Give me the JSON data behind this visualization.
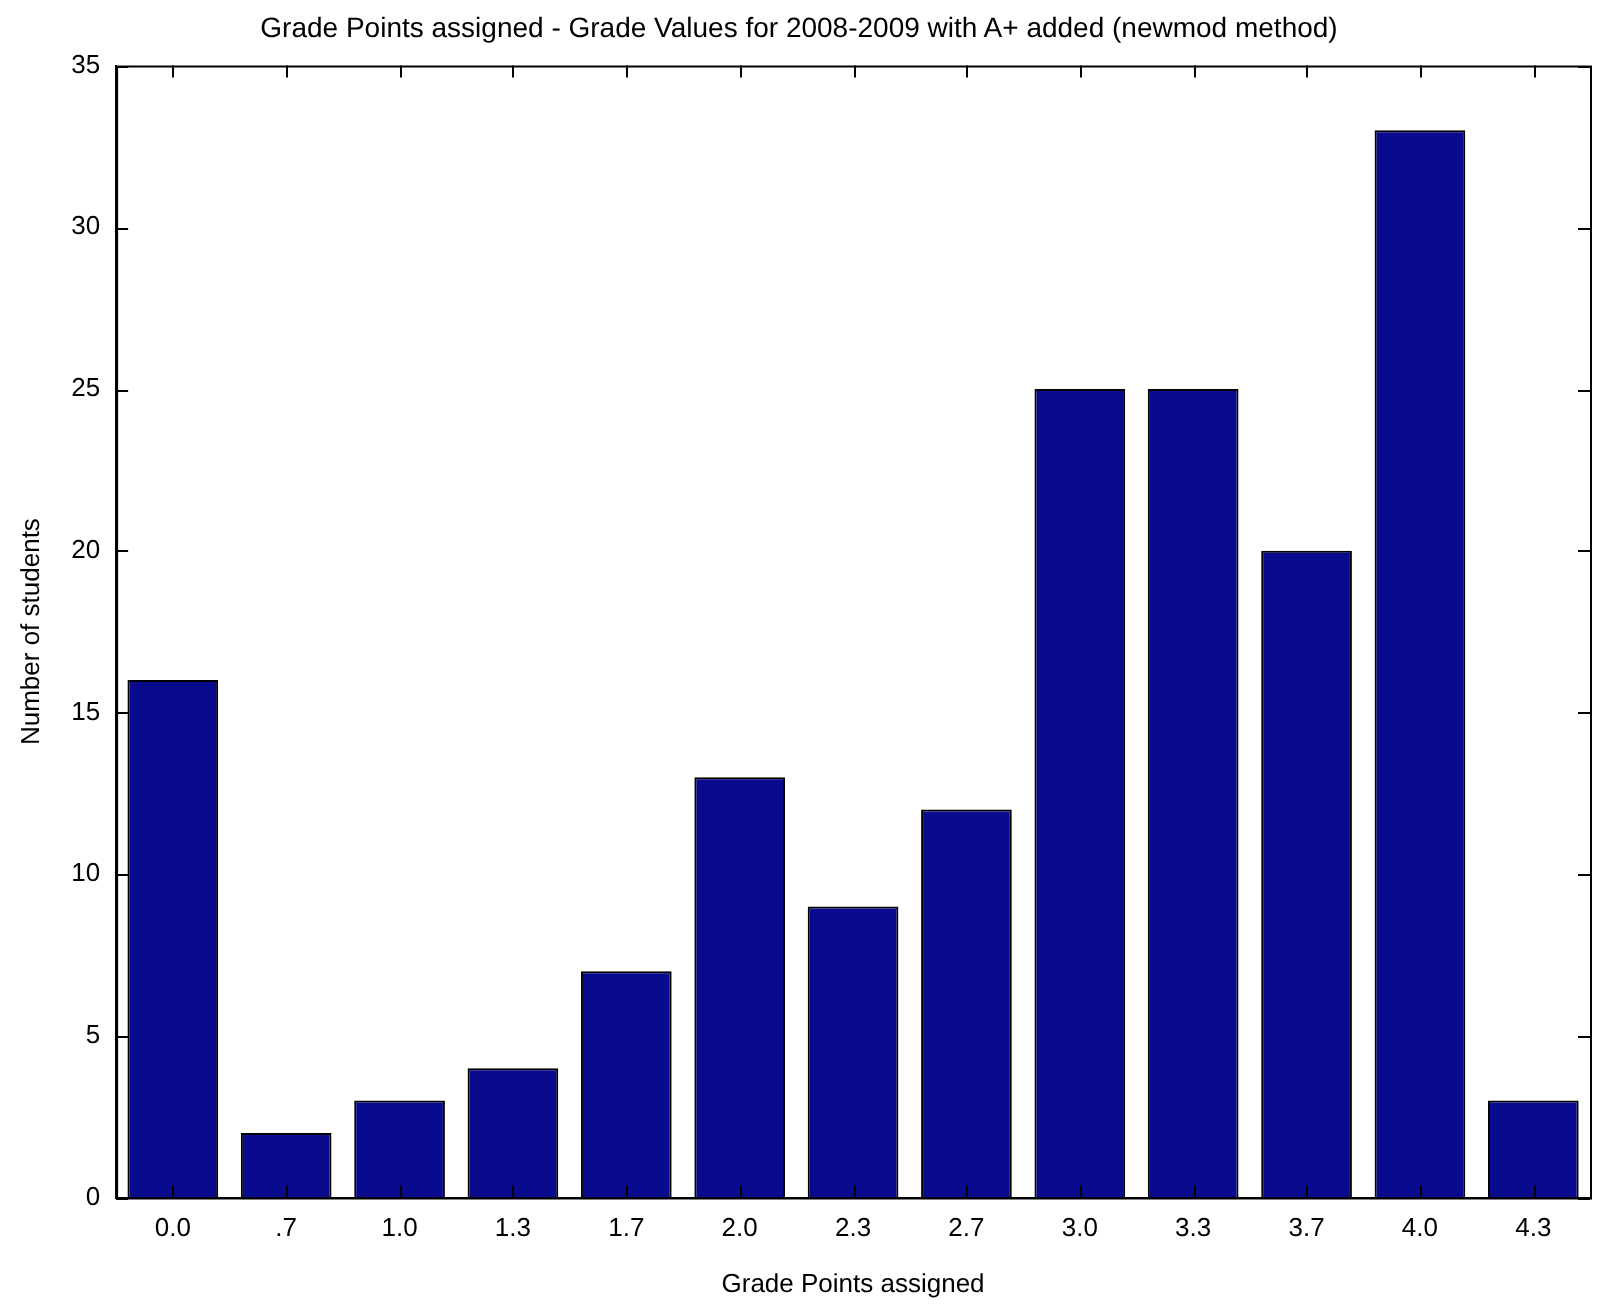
{
  "chart_data": {
    "type": "bar",
    "title": "Grade Points assigned - Grade Values for 2008-2009 with A+ added (newmod method)",
    "xlabel": "Grade Points assigned",
    "ylabel": "Number of students",
    "categories": [
      "0.0",
      ".7",
      "1.0",
      "1.3",
      "1.7",
      "2.0",
      "2.3",
      "2.7",
      "3.0",
      "3.3",
      "3.7",
      "4.0",
      "4.3"
    ],
    "values": [
      16,
      2,
      3,
      4,
      7,
      13,
      9,
      12,
      25,
      25,
      20,
      33,
      3
    ],
    "color": "#0a0a8f",
    "ylim": [
      0,
      35
    ],
    "yticks": [
      0,
      5,
      10,
      15,
      20,
      25,
      30,
      35
    ]
  }
}
